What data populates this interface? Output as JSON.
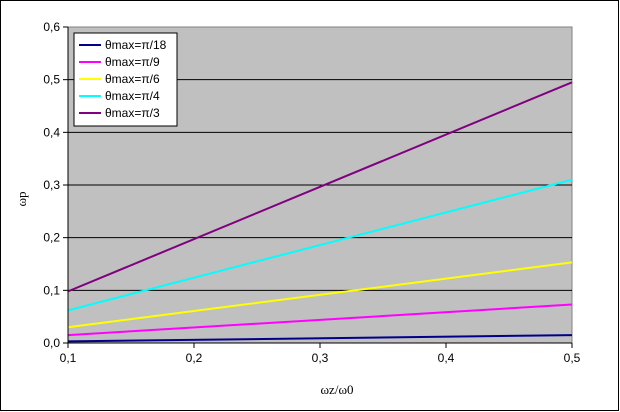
{
  "chart_data": {
    "type": "line",
    "xlabel": "ωz/ω0",
    "ylabel": "ωp",
    "xlim": [
      0.1,
      0.5
    ],
    "ylim": [
      0.0,
      0.6
    ],
    "x_ticks": [
      "0,1",
      "0,2",
      "0,3",
      "0,4",
      "0,5"
    ],
    "y_ticks": [
      "0,0",
      "0,1",
      "0,2",
      "0,3",
      "0,4",
      "0,5",
      "0,6"
    ],
    "grid": "horizontal",
    "legend_position": "top-left",
    "plot_background": "#c0c0c0",
    "series": [
      {
        "name": "θmax=π/18",
        "color": "#00008b",
        "x": [
          0.1,
          0.5
        ],
        "y": [
          0.003,
          0.015
        ]
      },
      {
        "name": "θmax=π/9",
        "color": "#ff00ff",
        "x": [
          0.1,
          0.5
        ],
        "y": [
          0.015,
          0.073
        ]
      },
      {
        "name": "θmax=π/6",
        "color": "#ffff00",
        "x": [
          0.1,
          0.5
        ],
        "y": [
          0.03,
          0.153
        ]
      },
      {
        "name": "θmax=π/4",
        "color": "#00ffff",
        "x": [
          0.1,
          0.5
        ],
        "y": [
          0.062,
          0.31
        ]
      },
      {
        "name": "θmax=π/3",
        "color": "#800080",
        "x": [
          0.1,
          0.5
        ],
        "y": [
          0.098,
          0.495
        ]
      }
    ]
  }
}
